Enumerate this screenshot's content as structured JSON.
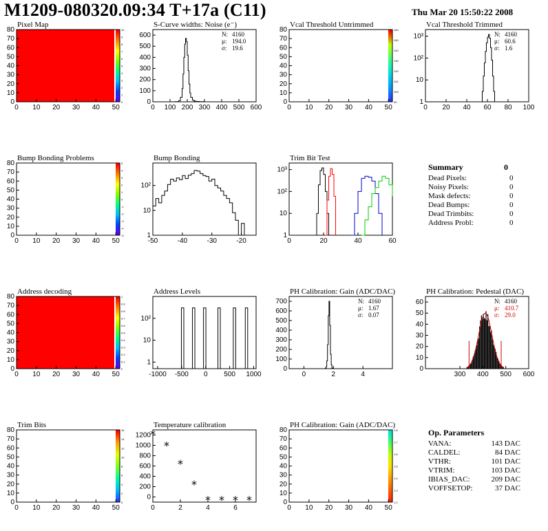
{
  "header": {
    "title": "M1209-080320.09:34 T+17a (C11)",
    "date": "Thu Mar 20 15:50:22 2008"
  },
  "colors": {
    "hist_line": "#000000",
    "red": "#ff0000",
    "blue": "#0000cc",
    "green": "#00cc00",
    "fit": "#cc0000"
  },
  "chart_data": [
    {
      "id": "pixel_map",
      "type": "heatmap",
      "title": "Pixel Map",
      "xlim": [
        0,
        52
      ],
      "ylim": [
        0,
        80
      ],
      "xticks": [
        "0",
        "10",
        "20",
        "30",
        "40",
        "50"
      ],
      "yticks": [
        "0",
        "10",
        "20",
        "30",
        "40",
        "50",
        "60",
        "70",
        "80"
      ],
      "fill": "uniform",
      "fill_color": "#ff0000",
      "zticks": [
        "0",
        "1",
        "2",
        "3",
        "4",
        "5",
        "6",
        "7",
        "8",
        "9",
        "10"
      ]
    },
    {
      "id": "scurve",
      "type": "line",
      "title": "S-Curve widths: Noise (e⁻)",
      "xlim": [
        0,
        600
      ],
      "ylim": [
        0,
        650
      ],
      "xticks": [
        "0",
        "100",
        "200",
        "300",
        "400",
        "500",
        "600"
      ],
      "yticks": [
        "0",
        "100",
        "200",
        "300",
        "400",
        "500",
        "600"
      ],
      "stats": [
        {
          "label": "N:",
          "value": "4160"
        },
        {
          "label": "μ:",
          "value": "194.0"
        },
        {
          "label": "σ:",
          "value": "19.6"
        }
      ],
      "x": [
        100,
        130,
        150,
        160,
        170,
        175,
        180,
        185,
        190,
        195,
        200,
        205,
        210,
        215,
        220,
        230,
        240,
        250,
        270,
        300
      ],
      "y": [
        0,
        2,
        10,
        40,
        120,
        250,
        400,
        520,
        570,
        540,
        420,
        280,
        160,
        80,
        40,
        15,
        6,
        3,
        1,
        0
      ]
    },
    {
      "id": "vcal_untrimmed",
      "type": "heatmap",
      "title": "Vcal Threshold Untrimmed",
      "xlim": [
        0,
        52
      ],
      "ylim": [
        0,
        80
      ],
      "xticks": [
        "0",
        "10",
        "20",
        "30",
        "40",
        "50"
      ],
      "yticks": [
        "0",
        "10",
        "20",
        "30",
        "40",
        "50",
        "60",
        "70",
        "80"
      ],
      "fill": "noise",
      "palette": "cool",
      "zticks": [
        "90",
        "100",
        "110",
        "120",
        "130",
        "140",
        "150",
        "160"
      ]
    },
    {
      "id": "vcal_trimmed",
      "type": "line",
      "title": "Vcal Threshold Trimmed",
      "xlim": [
        0,
        100
      ],
      "log": true,
      "ylim_log": [
        1,
        2000
      ],
      "xticks": [
        "0",
        "20",
        "40",
        "60",
        "80",
        "100"
      ],
      "yticks": [
        "1",
        "10",
        "10²",
        "10³"
      ],
      "stats": [
        {
          "label": "N:",
          "value": "4160"
        },
        {
          "label": "μ:",
          "value": "60.6"
        },
        {
          "label": "σ:",
          "value": "1.6"
        }
      ],
      "x": [
        53,
        55,
        56,
        57,
        58,
        59,
        60,
        61,
        62,
        63,
        64,
        65,
        66,
        67
      ],
      "y": [
        1,
        3,
        15,
        60,
        200,
        500,
        900,
        1200,
        800,
        300,
        80,
        15,
        3,
        1
      ]
    },
    {
      "id": "bump_problems",
      "type": "heatmap",
      "title": "Bump Bonding Problems",
      "xlim": [
        0,
        52
      ],
      "ylim": [
        0,
        80
      ],
      "xticks": [
        "0",
        "10",
        "20",
        "30",
        "40",
        "50"
      ],
      "yticks": [
        "0",
        "10",
        "20",
        "30",
        "40",
        "50",
        "60",
        "70",
        "80"
      ],
      "fill": "empty",
      "zticks": [
        "-5",
        "-4",
        "-3",
        "-2",
        "-1",
        "0",
        "1",
        "2",
        "3",
        "4",
        "5"
      ]
    },
    {
      "id": "bump_bonding",
      "type": "line",
      "title": "Bump Bonding",
      "xlim": [
        -50,
        -15
      ],
      "log": true,
      "ylim_log": [
        1,
        800
      ],
      "xticks": [
        "-50",
        "-40",
        "-30",
        "-20"
      ],
      "yticks": [
        "1",
        "10",
        "10²"
      ],
      "x": [
        -50,
        -49,
        -48,
        -47,
        -46,
        -45,
        -44,
        -43,
        -42,
        -41,
        -40,
        -39,
        -38,
        -37,
        -36,
        -35,
        -34,
        -33,
        -32,
        -31,
        -30,
        -29,
        -28,
        -27,
        -26,
        -25,
        -24,
        -23,
        -22,
        -21,
        -20,
        -19
      ],
      "y": [
        15,
        30,
        20,
        40,
        60,
        110,
        180,
        150,
        200,
        170,
        250,
        190,
        260,
        300,
        400,
        380,
        300,
        250,
        230,
        150,
        180,
        100,
        80,
        60,
        40,
        30,
        20,
        8,
        4,
        1,
        3,
        1
      ]
    },
    {
      "id": "trim_bit_test",
      "type": "line",
      "title": "Trim Bit Test",
      "xlim": [
        0,
        60
      ],
      "log": true,
      "ylim_log": [
        1,
        2000
      ],
      "xticks": [
        "0",
        "20",
        "40",
        "60"
      ],
      "yticks": [
        "1",
        "10",
        "10²",
        "10³"
      ],
      "series": [
        {
          "color": "#000000",
          "x": [
            15,
            16,
            17,
            18,
            19,
            20,
            21,
            22,
            23
          ],
          "y": [
            1,
            10,
            200,
            900,
            1200,
            600,
            100,
            10,
            1
          ]
        },
        {
          "color": "#ff0000",
          "x": [
            21,
            22,
            23,
            24,
            25,
            26,
            27
          ],
          "y": [
            1,
            40,
            500,
            1100,
            600,
            60,
            1
          ]
        },
        {
          "color": "#0000cc",
          "x": [
            36,
            38,
            40,
            42,
            44,
            46,
            48,
            50,
            52,
            54
          ],
          "y": [
            1,
            10,
            100,
            400,
            500,
            450,
            300,
            80,
            10,
            1
          ]
        },
        {
          "color": "#00cc00",
          "x": [
            42,
            44,
            46,
            48,
            50,
            52,
            54,
            56,
            58,
            60
          ],
          "y": [
            1,
            5,
            20,
            80,
            150,
            300,
            500,
            400,
            200,
            60
          ]
        }
      ]
    },
    {
      "id": "address_decoding",
      "type": "heatmap",
      "title": "Address decoding",
      "xlim": [
        0,
        52
      ],
      "ylim": [
        0,
        80
      ],
      "xticks": [
        "0",
        "10",
        "20",
        "30",
        "40",
        "50"
      ],
      "yticks": [
        "0",
        "10",
        "20",
        "30",
        "40",
        "50",
        "60",
        "70",
        "80"
      ],
      "fill": "uniform",
      "fill_color": "#ff0000",
      "zticks": [
        "0",
        "0.1",
        "0.2",
        "0.3",
        "0.4",
        "0.5",
        "0.6",
        "0.7",
        "0.8",
        "0.9",
        "1"
      ]
    },
    {
      "id": "address_levels",
      "type": "line",
      "title": "Address Levels",
      "xlim": [
        -1100,
        1050
      ],
      "log": true,
      "ylim_log": [
        0.5,
        1000
      ],
      "xticks": [
        "-1000",
        "-500",
        "0",
        "500",
        "1000"
      ],
      "yticks": [
        "1",
        "10",
        "10²"
      ],
      "peaks": [
        -480,
        -250,
        -20,
        280,
        600,
        850
      ],
      "peak_height": 300
    },
    {
      "id": "ph_gain",
      "type": "line",
      "title": "PH Calibration: Gain (ADC/DAC)",
      "xlim": [
        -1,
        6
      ],
      "ylim": [
        0,
        750
      ],
      "xticks": [
        "0",
        "2",
        "4"
      ],
      "yticks": [
        "0",
        "100",
        "200",
        "300",
        "400",
        "500",
        "600",
        "700"
      ],
      "stats": [
        {
          "label": "N:",
          "value": "4160"
        },
        {
          "label": "μ:",
          "value": "1.67"
        },
        {
          "label": "σ:",
          "value": "0.07"
        }
      ],
      "x": [
        1.3,
        1.45,
        1.5,
        1.55,
        1.6,
        1.65,
        1.7,
        1.75,
        1.8,
        1.85,
        1.9,
        2.0
      ],
      "y": [
        0,
        5,
        20,
        80,
        250,
        550,
        700,
        450,
        150,
        40,
        5,
        0
      ]
    },
    {
      "id": "ph_pedestal",
      "type": "line",
      "title": "PH Calibration: Pedestal (DAC)",
      "xlim": [
        150,
        600
      ],
      "ylim": [
        0,
        65
      ],
      "xticks": [
        "300",
        "400",
        "500",
        "600"
      ],
      "yticks": [
        "0",
        "10",
        "20",
        "30",
        "40",
        "50",
        "60"
      ],
      "stats": [
        {
          "label": "N:",
          "value": "4160"
        },
        {
          "label": "μ:",
          "value": "410.7"
        },
        {
          "label": "σ:",
          "value": "29.0"
        }
      ],
      "stat_colors": [
        "#000000",
        "#cc0000",
        "#cc0000"
      ],
      "gauss": {
        "mean": 410.7,
        "sigma": 29.0,
        "height": 50,
        "range": [
          330,
          490
        ]
      }
    },
    {
      "id": "trim_bits",
      "type": "heatmap",
      "title": "Trim Bits",
      "xlim": [
        0,
        52
      ],
      "ylim": [
        0,
        80
      ],
      "xticks": [
        "0",
        "10",
        "20",
        "30",
        "40",
        "50"
      ],
      "yticks": [
        "0",
        "10",
        "20",
        "30",
        "40",
        "50",
        "60",
        "70",
        "80"
      ],
      "fill": "noise",
      "palette": "trim",
      "zticks": [
        "0",
        "2",
        "4",
        "6",
        "8",
        "10",
        "12",
        "14",
        "16"
      ]
    },
    {
      "id": "temperature",
      "type": "scatter",
      "title": "Temperature calibration",
      "xlim": [
        0,
        7.5
      ],
      "ylim": [
        -100,
        1300
      ],
      "xticks": [
        "0",
        "2",
        "4",
        "6"
      ],
      "yticks": [
        "0",
        "200",
        "400",
        "600",
        "800",
        "1000",
        "1200"
      ],
      "x": [
        0,
        1,
        2,
        3,
        4,
        5,
        6,
        7
      ],
      "y": [
        1220,
        1000,
        650,
        250,
        -50,
        -50,
        -50,
        -50
      ]
    },
    {
      "id": "ph_gain_map",
      "type": "heatmap",
      "title": "PH Calibration: Gain (ADC/DAC)",
      "xlim": [
        0,
        52
      ],
      "ylim": [
        0,
        80
      ],
      "xticks": [
        "0",
        "10",
        "20",
        "30",
        "40",
        "50"
      ],
      "yticks": [
        "0",
        "10",
        "20",
        "30",
        "40",
        "50",
        "60",
        "70",
        "80"
      ],
      "fill": "noise",
      "palette": "warm",
      "zticks": [
        "1.2",
        "1.3",
        "1.4",
        "1.5",
        "1.6",
        "1.7",
        "1.8"
      ]
    }
  ],
  "summary": {
    "title": "Summary",
    "value": "0",
    "rows": [
      {
        "label": "Dead Pixels:",
        "value": "0"
      },
      {
        "label": "Noisy Pixels:",
        "value": "0"
      },
      {
        "label": "Mask defects:",
        "value": "0"
      },
      {
        "label": "Dead Bumps:",
        "value": "0"
      },
      {
        "label": "Dead Trimbits:",
        "value": "0"
      },
      {
        "label": "Address Probl:",
        "value": "0"
      }
    ]
  },
  "op_params": {
    "title": "Op. Parameters",
    "rows": [
      {
        "label": "VANA:",
        "value": "143 DAC"
      },
      {
        "label": "CALDEL:",
        "value": "84 DAC"
      },
      {
        "label": "VTHR:",
        "value": "101 DAC"
      },
      {
        "label": "VTRIM:",
        "value": "103 DAC"
      },
      {
        "label": "IBIAS_DAC:",
        "value": "209 DAC"
      },
      {
        "label": "VOFFSETOP:",
        "value": "37 DAC"
      }
    ]
  }
}
